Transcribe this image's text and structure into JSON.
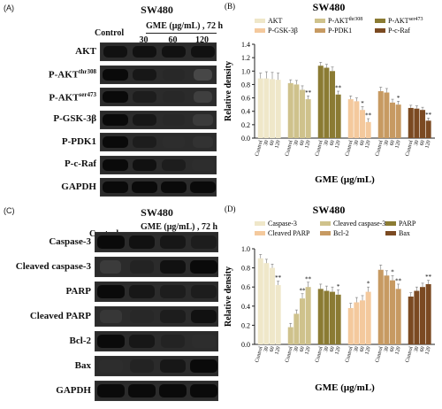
{
  "panels": {
    "A": {
      "letter": "(A)",
      "title": "SW480",
      "control_label": "Control",
      "treatment_label": "GME (μg/mL) , 72 h",
      "doses": [
        "30",
        "60",
        "120"
      ],
      "rows": [
        "AKT",
        "P-AKT",
        "P-AKT",
        "P-GSK-3β",
        "P-PDK1",
        "P-c-Raf",
        "GAPDH"
      ],
      "row_sup": [
        "",
        "thr308",
        "ser473",
        "",
        "",
        "",
        ""
      ],
      "band_intensity": [
        [
          0.95,
          0.95,
          0.95,
          0.95
        ],
        [
          1.0,
          0.9,
          0.75,
          0.4
        ],
        [
          1.0,
          0.85,
          0.75,
          0.5
        ],
        [
          1.0,
          0.9,
          0.75,
          0.55
        ],
        [
          1.0,
          0.85,
          0.7,
          0.65
        ],
        [
          1.0,
          0.95,
          0.85,
          0.7
        ],
        [
          1.0,
          1.0,
          1.0,
          1.0
        ]
      ]
    },
    "C": {
      "letter": "(C)",
      "title": "SW480",
      "control_label": "Control",
      "treatment_label": "GME (μg/mL) , 72 h",
      "doses": [
        "30",
        "60",
        "120"
      ],
      "rows": [
        "Caspase-3",
        "Cleaved caspase-3",
        "PARP",
        "Cleaved PARP",
        "Bcl-2",
        "Bax",
        "GAPDH"
      ],
      "band_intensity": [
        [
          1.0,
          0.95,
          0.9,
          0.85
        ],
        [
          0.55,
          0.8,
          0.95,
          1.0
        ],
        [
          1.0,
          0.9,
          0.85,
          0.85
        ],
        [
          0.6,
          0.75,
          0.85,
          0.95
        ],
        [
          1.0,
          0.9,
          0.8,
          0.7
        ],
        [
          0.7,
          0.8,
          0.9,
          1.0
        ],
        [
          1.0,
          1.0,
          1.0,
          1.0
        ]
      ]
    }
  },
  "chart_data": [
    {
      "panel": "(B)",
      "type": "bar",
      "title": "SW480",
      "xlabel": "GME (μg/mL)",
      "ylabel": "Relative density",
      "ylim": [
        0,
        1.4
      ],
      "yticks": [
        "0.0",
        "0.2",
        "0.4",
        "0.6",
        "0.8",
        "1.0",
        "1.2",
        "1.4"
      ],
      "group_categories": [
        "Control",
        "30",
        "60",
        "120"
      ],
      "legend_position": "top",
      "series": [
        {
          "name": "AKT",
          "sup": "",
          "color": "#efe7c9",
          "values": [
            0.89,
            0.89,
            0.88,
            0.87
          ],
          "errors": [
            0.08,
            0.1,
            0.1,
            0.1
          ],
          "stars": [
            "",
            "",
            "",
            ""
          ]
        },
        {
          "name": "P-AKT",
          "sup": "thr308",
          "color": "#cfc28c",
          "values": [
            0.82,
            0.8,
            0.72,
            0.58
          ],
          "errors": [
            0.05,
            0.06,
            0.06,
            0.05
          ],
          "stars": [
            "",
            "",
            "",
            "**"
          ]
        },
        {
          "name": "P-AKT",
          "sup": "ser473",
          "color": "#8b7b33",
          "values": [
            1.08,
            1.05,
            1.0,
            0.65
          ],
          "errors": [
            0.05,
            0.05,
            0.06,
            0.05
          ],
          "stars": [
            "",
            "",
            "",
            "**"
          ]
        },
        {
          "name": "P-GSK-3β",
          "sup": "",
          "color": "#f4c99d",
          "values": [
            0.58,
            0.55,
            0.42,
            0.24
          ],
          "errors": [
            0.05,
            0.05,
            0.05,
            0.05
          ],
          "stars": [
            "",
            "",
            "*",
            "**"
          ]
        },
        {
          "name": "P-PDK1",
          "sup": "",
          "color": "#c79a62",
          "values": [
            0.7,
            0.68,
            0.53,
            0.5
          ],
          "errors": [
            0.06,
            0.06,
            0.05,
            0.05
          ],
          "stars": [
            "",
            "",
            "",
            "*"
          ]
        },
        {
          "name": "P-c-Raf",
          "sup": "",
          "color": "#7b4a22",
          "values": [
            0.45,
            0.44,
            0.42,
            0.26
          ],
          "errors": [
            0.04,
            0.04,
            0.04,
            0.04
          ],
          "stars": [
            "",
            "",
            "",
            "**"
          ]
        }
      ]
    },
    {
      "panel": "(D)",
      "type": "bar",
      "title": "SW480",
      "xlabel": "GME (μg/mL)",
      "ylabel": "Relative density",
      "ylim": [
        0,
        1.0
      ],
      "yticks": [
        "0.0",
        "0.2",
        "0.4",
        "0.6",
        "0.8",
        "1.0"
      ],
      "group_categories": [
        "Control",
        "30",
        "60",
        "120"
      ],
      "legend_position": "top",
      "series": [
        {
          "name": "Caspase-3",
          "sup": "",
          "color": "#efe7c9",
          "values": [
            0.9,
            0.85,
            0.8,
            0.62
          ],
          "errors": [
            0.04,
            0.04,
            0.04,
            0.04
          ],
          "stars": [
            "",
            "",
            "",
            "**"
          ]
        },
        {
          "name": "Cleaved caspase-3",
          "sup": "",
          "color": "#cfc28c",
          "values": [
            0.18,
            0.32,
            0.48,
            0.6
          ],
          "errors": [
            0.04,
            0.04,
            0.05,
            0.05
          ],
          "stars": [
            "",
            "",
            "**",
            "**"
          ]
        },
        {
          "name": "PARP",
          "sup": "",
          "color": "#8b7b33",
          "values": [
            0.58,
            0.56,
            0.55,
            0.52
          ],
          "errors": [
            0.05,
            0.05,
            0.05,
            0.05
          ],
          "stars": [
            "",
            "",
            "",
            "*"
          ]
        },
        {
          "name": "Cleaved PARP",
          "sup": "",
          "color": "#f4c99d",
          "values": [
            0.38,
            0.44,
            0.46,
            0.55
          ],
          "errors": [
            0.05,
            0.05,
            0.05,
            0.05
          ],
          "stars": [
            "",
            "",
            "",
            "*"
          ]
        },
        {
          "name": "Bcl-2",
          "sup": "",
          "color": "#c79a62",
          "values": [
            0.78,
            0.72,
            0.67,
            0.58
          ],
          "errors": [
            0.05,
            0.05,
            0.05,
            0.05
          ],
          "stars": [
            "",
            "",
            "*",
            "**"
          ]
        },
        {
          "name": "Bax",
          "sup": "",
          "color": "#7b4a22",
          "values": [
            0.5,
            0.56,
            0.6,
            0.63
          ],
          "errors": [
            0.04,
            0.04,
            0.04,
            0.04
          ],
          "stars": [
            "",
            "",
            "",
            "**"
          ]
        }
      ]
    }
  ]
}
